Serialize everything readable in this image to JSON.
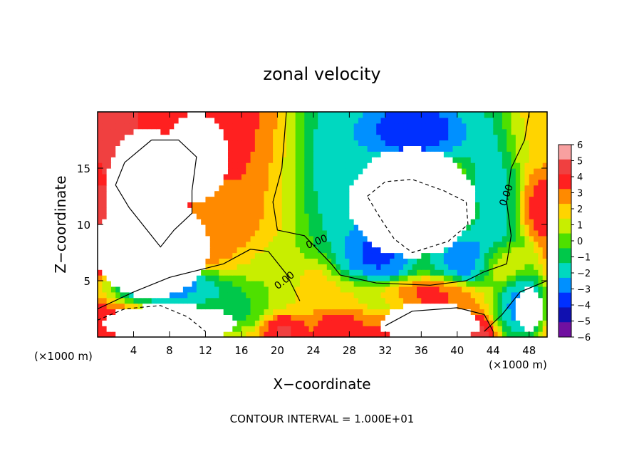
{
  "chart_data": {
    "type": "heatmap",
    "title": "zonal velocity",
    "xlabel": "X−coordinate",
    "ylabel": "Z−coordinate",
    "x_unit_label": "(×1000 m)",
    "y_unit_label": "(×1000 m)",
    "footer": "CONTOUR INTERVAL = 1.000E+01",
    "xlim": [
      0,
      50
    ],
    "ylim": [
      0,
      20
    ],
    "x_ticks": [
      4,
      8,
      12,
      16,
      20,
      24,
      28,
      32,
      36,
      40,
      44,
      48
    ],
    "y_ticks": [
      5,
      10,
      15
    ],
    "contour_labels": [
      "0.00",
      "0.00",
      "0.00"
    ],
    "colorbar": {
      "ticks": [
        "6",
        "5",
        "4",
        "3",
        "2",
        "1",
        "0",
        "−1",
        "−2",
        "−3",
        "−4",
        "−5",
        "−6"
      ],
      "min": -6,
      "max": 6,
      "colors": [
        "#f8a0a0",
        "#f04040",
        "#ff2020",
        "#ff8a00",
        "#ffd400",
        "#c8ee00",
        "#4ee000",
        "#00c84a",
        "#00d8c0",
        "#0090ff",
        "#0030ff",
        "#1010b0",
        "#7010a0"
      ]
    },
    "blobs": [
      {
        "x": 2,
        "z": 18,
        "v": 5,
        "rx": 2.0,
        "rz": 2.5
      },
      {
        "x": 1,
        "z": 10,
        "v": 5,
        "rx": 1.5,
        "rz": 2.5
      },
      {
        "x": 18,
        "z": 17,
        "v": 4.5,
        "rx": 2.5,
        "rz": 6
      },
      {
        "x": 15,
        "z": 10,
        "v": 3,
        "rx": 3.5,
        "rz": 3
      },
      {
        "x": 20,
        "z": 14,
        "v": 1,
        "rx": 3.0,
        "rz": 7
      },
      {
        "x": 26,
        "z": 15,
        "v": -3,
        "rx": 4.0,
        "rz": 7
      },
      {
        "x": 35,
        "z": 18.5,
        "v": -5.5,
        "rx": 5.5,
        "rz": 2.5
      },
      {
        "x": 31,
        "z": 7.5,
        "v": -5,
        "rx": 3.5,
        "rz": 3
      },
      {
        "x": 42,
        "z": 7,
        "v": -4.5,
        "rx": 4.0,
        "rz": 2
      },
      {
        "x": 44,
        "z": 14,
        "v": -3,
        "rx": 2.5,
        "rz": 6
      },
      {
        "x": 48,
        "z": 18,
        "v": 1.5,
        "rx": 2.5,
        "rz": 3
      },
      {
        "x": 49,
        "z": 12,
        "v": 4,
        "rx": 1.5,
        "rz": 2
      },
      {
        "x": 8,
        "z": 4.5,
        "v": -4.5,
        "rx": 4.5,
        "rz": 1.2
      },
      {
        "x": 14,
        "z": 3,
        "v": -2,
        "rx": 4.0,
        "rz": 2
      },
      {
        "x": 20,
        "z": 6,
        "v": 0,
        "rx": 4.0,
        "rz": 2.5
      },
      {
        "x": 24,
        "z": 5,
        "v": 3,
        "rx": 2.0,
        "rz": 1.5
      },
      {
        "x": 28,
        "z": 4,
        "v": 2,
        "rx": 4.0,
        "rz": 1.2
      },
      {
        "x": 36,
        "z": 4.2,
        "v": 4,
        "rx": 5.0,
        "rz": 0.8
      },
      {
        "x": 45,
        "z": 6.5,
        "v": 5,
        "rx": 2.0,
        "rz": 1.5
      },
      {
        "x": 47,
        "z": 3,
        "v": -4,
        "rx": 2.0,
        "rz": 2.5
      },
      {
        "x": 20.5,
        "z": 0.8,
        "v": 5,
        "rx": 1.5,
        "rz": 1
      },
      {
        "x": 27,
        "z": 1.5,
        "v": 4,
        "rx": 2.0,
        "rz": 1
      },
      {
        "x": 42,
        "z": 0.5,
        "v": 5,
        "rx": 1.5,
        "rz": 0.8
      }
    ],
    "mask_regions": [
      {
        "x": 5.5,
        "z": 13,
        "rx": 4.5,
        "rz": 5.5
      },
      {
        "x": 6,
        "z": 8,
        "rx": 6.5,
        "rz": 4.5
      },
      {
        "x": 11,
        "z": 16,
        "rx": 3.5,
        "rz": 4
      },
      {
        "x": 35,
        "z": 12,
        "rx": 7.0,
        "rz": 4.8
      },
      {
        "x": 8,
        "z": 1.2,
        "rx": 7.5,
        "rz": 1.7
      },
      {
        "x": 37,
        "z": 1.2,
        "rx": 5.5,
        "rz": 1.8
      },
      {
        "x": 48,
        "z": 2.5,
        "rx": 1.5,
        "rz": 2
      }
    ]
  }
}
